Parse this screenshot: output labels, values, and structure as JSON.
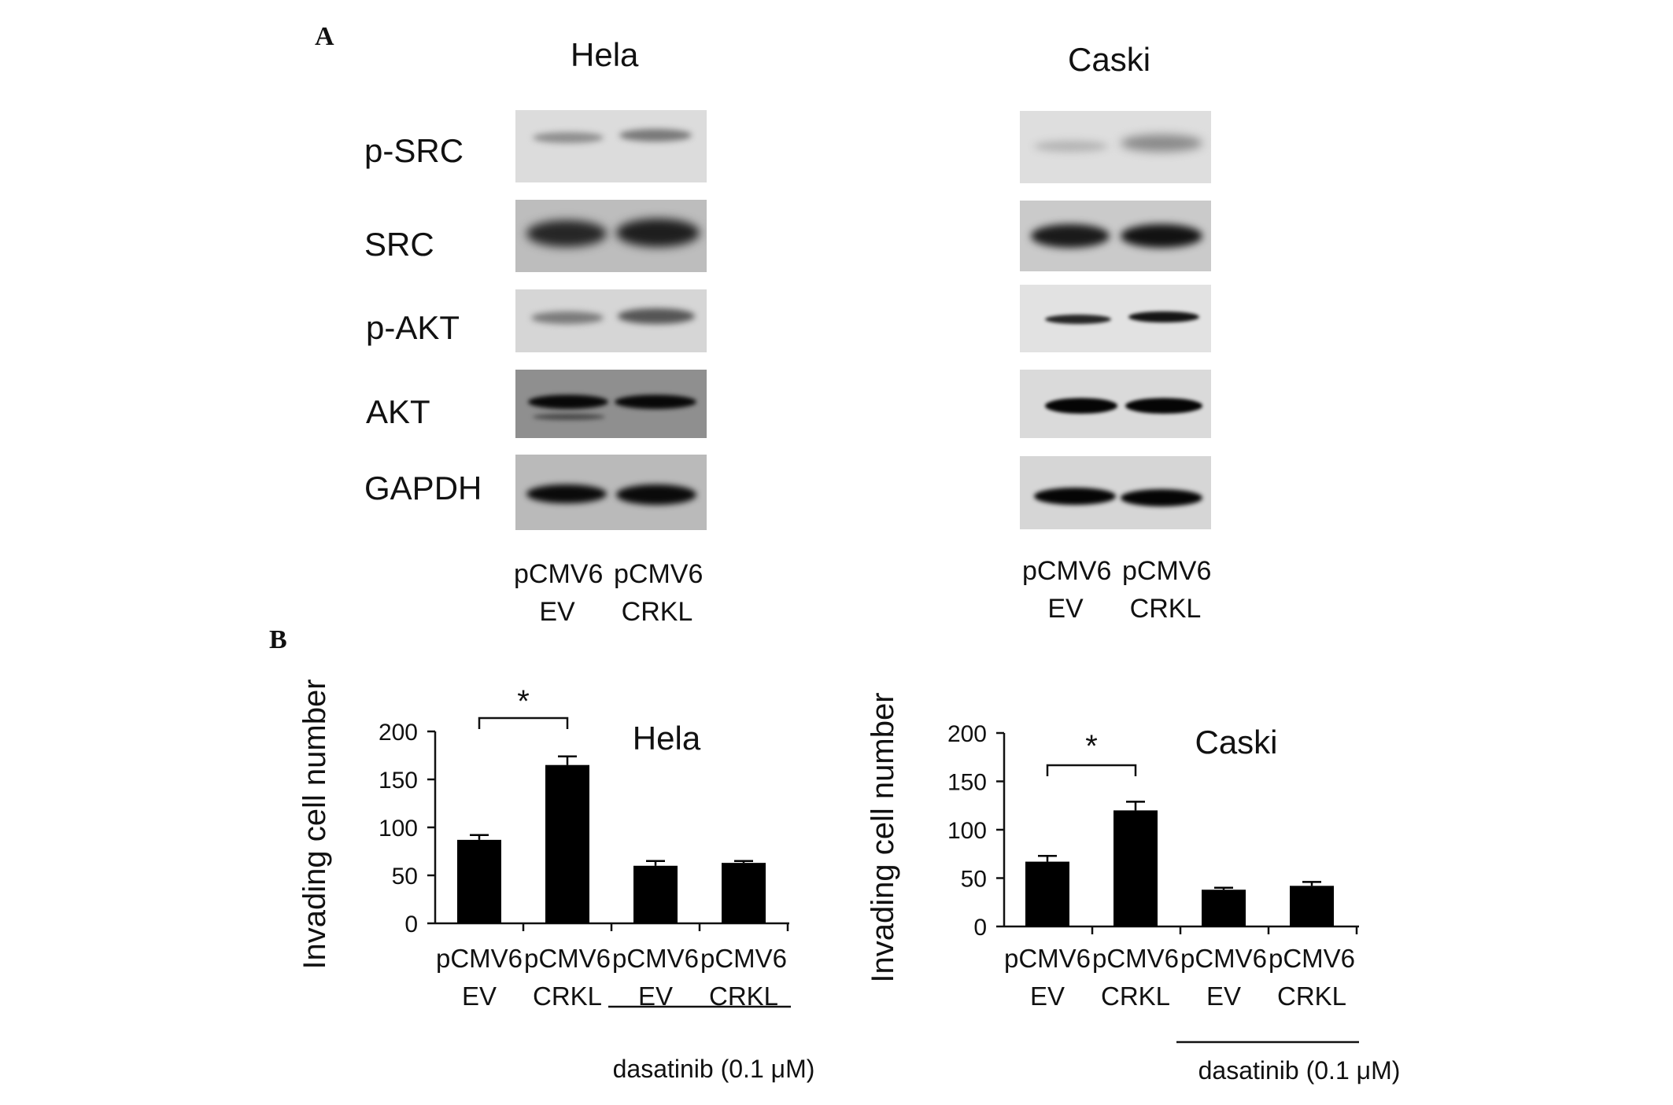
{
  "panel_a": {
    "letter": "A",
    "blots": [
      {
        "cell_line": "Hela",
        "lanes": [
          {
            "line1": "pCMV6",
            "line2": "EV"
          },
          {
            "line1": "pCMV6",
            "line2": "CRKL"
          }
        ]
      },
      {
        "cell_line": "Caski",
        "lanes": [
          {
            "line1": "pCMV6",
            "line2": "EV"
          },
          {
            "line1": "pCMV6",
            "line2": "CRKL"
          }
        ]
      }
    ],
    "proteins": [
      "p-SRC",
      "SRC",
      "p-AKT",
      "AKT",
      "GAPDH"
    ]
  },
  "panel_b": {
    "letter": "B"
  },
  "chart_data": [
    {
      "type": "bar",
      "title": "Hela",
      "ylabel": "Invading cell number",
      "ylim": [
        0,
        200
      ],
      "yticks": [
        0,
        50,
        100,
        150,
        200
      ],
      "categories": [
        {
          "line1": "pCMV6",
          "line2": "EV"
        },
        {
          "line1": "pCMV6",
          "line2": "CRKL"
        },
        {
          "line1": "pCMV6",
          "line2": "EV"
        },
        {
          "line1": "pCMV6",
          "line2": "CRKL"
        }
      ],
      "values": [
        87,
        165,
        60,
        63
      ],
      "errors": [
        5,
        9,
        5,
        2
      ],
      "significance": {
        "between": [
          0,
          1
        ],
        "label": "*"
      },
      "treatment": {
        "label": "dasatinib (0.1 μM)",
        "applies_to": [
          2,
          3
        ]
      },
      "bar_color": "#000000"
    },
    {
      "type": "bar",
      "title": "Caski",
      "ylabel": "Invading cell number",
      "ylim": [
        0,
        200
      ],
      "yticks": [
        0,
        50,
        100,
        150,
        200
      ],
      "categories": [
        {
          "line1": "pCMV6",
          "line2": "EV"
        },
        {
          "line1": "pCMV6",
          "line2": "CRKL"
        },
        {
          "line1": "pCMV6",
          "line2": "EV"
        },
        {
          "line1": "pCMV6",
          "line2": "CRKL"
        }
      ],
      "values": [
        67,
        120,
        38,
        42
      ],
      "errors": [
        6,
        9,
        2,
        4
      ],
      "significance": {
        "between": [
          0,
          1
        ],
        "label": "*"
      },
      "treatment": {
        "label": "dasatinib (0.1 μM)",
        "applies_to": [
          2,
          3
        ]
      },
      "bar_color": "#000000"
    }
  ]
}
